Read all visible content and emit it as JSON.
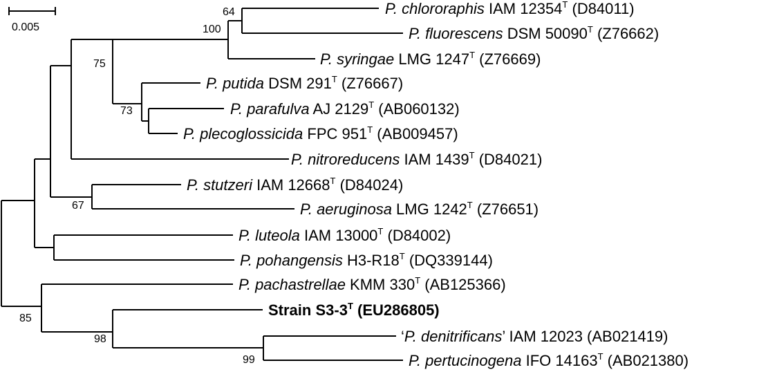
{
  "scale": {
    "label": "0.005"
  },
  "taxa": [
    {
      "id": "chlororaphis",
      "pre": "",
      "italic": "P. chlororaphis",
      "mid": " IAM 12354",
      "sup": "T",
      "post": " (D84011)",
      "bold": false
    },
    {
      "id": "fluorescens",
      "pre": "",
      "italic": "P. fluorescens",
      "mid": " DSM 50090",
      "sup": "T",
      "post": " (Z76662)",
      "bold": false
    },
    {
      "id": "syringae",
      "pre": "",
      "italic": "P. syringae",
      "mid": " LMG 1247",
      "sup": "T",
      "post": " (Z76669)",
      "bold": false
    },
    {
      "id": "putida",
      "pre": "",
      "italic": "P. putida",
      "mid": " DSM 291",
      "sup": "T",
      "post": " (Z76667)",
      "bold": false
    },
    {
      "id": "parafulva",
      "pre": "",
      "italic": "P. parafulva",
      "mid": " AJ 2129",
      "sup": "T",
      "post": " (AB060132)",
      "bold": false
    },
    {
      "id": "plecoglossicida",
      "pre": "",
      "italic": "P. plecoglossicida",
      "mid": " FPC 951",
      "sup": "T",
      "post": " (AB009457)",
      "bold": false
    },
    {
      "id": "nitroreducens",
      "pre": "",
      "italic": "P. nitroreducens",
      "mid": " IAM 1439",
      "sup": "T",
      "post": " (D84021)",
      "bold": false
    },
    {
      "id": "stutzeri",
      "pre": "",
      "italic": "P. stutzeri",
      "mid": " IAM 12668",
      "sup": "T",
      "post": " (D84024)",
      "bold": false
    },
    {
      "id": "aeruginosa",
      "pre": "",
      "italic": "P. aeruginosa",
      "mid": " LMG 1242",
      "sup": "T",
      "post": " (Z76651)",
      "bold": false
    },
    {
      "id": "luteola",
      "pre": "",
      "italic": "P. luteola",
      "mid": " IAM 13000",
      "sup": "T",
      "post": " (D84002)",
      "bold": false
    },
    {
      "id": "pohangensis",
      "pre": "",
      "italic": "P. pohangensis",
      "mid": " H3-R18",
      "sup": "T",
      "post": " (DQ339144)",
      "bold": false
    },
    {
      "id": "pachastrellae",
      "pre": "",
      "italic": "P. pachastrellae",
      "mid": " KMM 330",
      "sup": "T",
      "post": " (AB125366)",
      "bold": false
    },
    {
      "id": "strain-s3-3",
      "pre": "",
      "italic": "",
      "mid": "Strain S3-3",
      "sup": "T",
      "post": " (EU286805)",
      "bold": true
    },
    {
      "id": "denitrificans",
      "pre": "‘",
      "italic": "P. denitrificans",
      "mid": "’ IAM 12023",
      "sup": "",
      "post": " (AB021419)",
      "bold": false
    },
    {
      "id": "pertucinogena",
      "pre": "",
      "italic": "P. pertucinogena",
      "mid": " IFO 14163",
      "sup": "T",
      "post": " (AB021380)",
      "bold": false
    }
  ],
  "bootstrap": {
    "b64": "64",
    "b100": "100",
    "b75": "75",
    "b73": "73",
    "b67": "67",
    "b85": "85",
    "b98": "98",
    "b99": "99"
  }
}
